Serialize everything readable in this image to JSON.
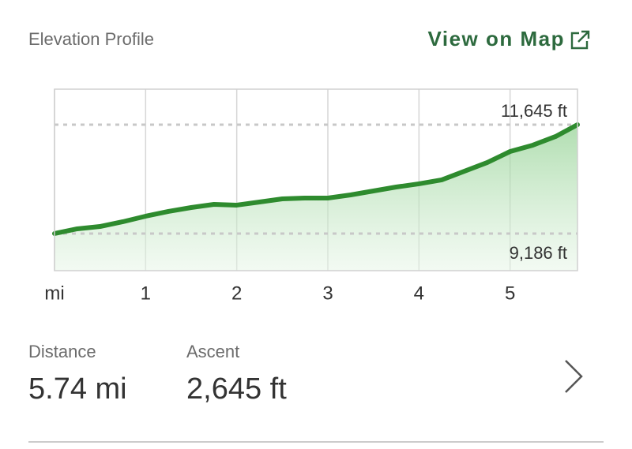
{
  "header": {
    "title": "Elevation Profile",
    "link": "View on Map"
  },
  "chart_data": {
    "type": "area",
    "x": [
      0,
      0.25,
      0.5,
      0.75,
      1.0,
      1.25,
      1.5,
      1.75,
      2.0,
      2.25,
      2.5,
      2.75,
      3.0,
      3.25,
      3.5,
      3.75,
      4.0,
      4.25,
      4.5,
      4.75,
      5.0,
      5.25,
      5.5,
      5.74
    ],
    "values": [
      9186,
      9293,
      9346,
      9453,
      9578,
      9685,
      9774,
      9845,
      9828,
      9899,
      9970,
      9988,
      9988,
      10059,
      10148,
      10237,
      10309,
      10398,
      10594,
      10790,
      11039,
      11182,
      11378,
      11645
    ],
    "color": "#2e8b2e",
    "xlim": [
      0,
      5.74
    ],
    "xticks": [
      {
        "value": 0,
        "label": "mi"
      },
      1,
      2,
      3,
      4,
      5
    ],
    "ylim": [
      8348,
      12447
    ],
    "yticks": [
      {
        "value": 11645,
        "label": "11,645 ft"
      },
      {
        "value": 9186,
        "label": "9,186 ft"
      }
    ],
    "grid": true
  },
  "stats": [
    {
      "label": "Distance",
      "value": "5.74 mi"
    },
    {
      "label": "Ascent",
      "value": "2,645 ft"
    }
  ]
}
